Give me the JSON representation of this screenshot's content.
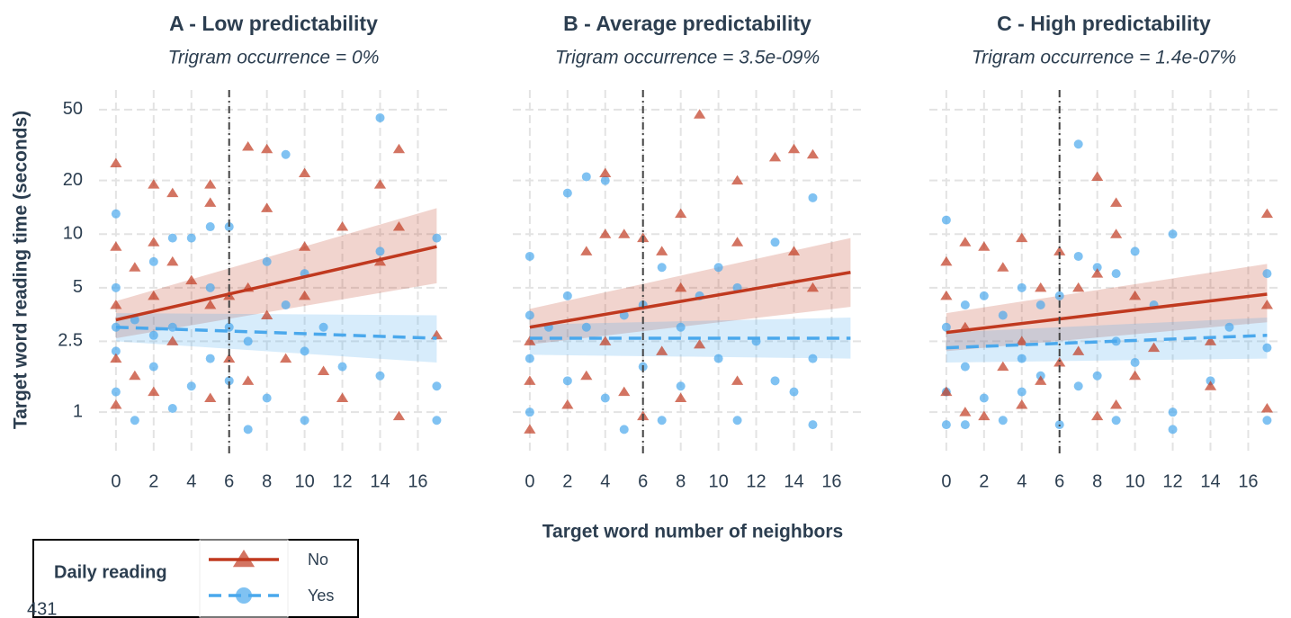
{
  "chart_data": [
    {
      "type": "scatter",
      "title": "A - Low predictability",
      "subtitle": "Trigram occurrence = 0%",
      "xlim": [
        -0.9,
        17.6
      ],
      "xticks": [
        0,
        2,
        4,
        6,
        8,
        10,
        12,
        14,
        16
      ],
      "ylim": [
        0.58,
        64.5
      ],
      "yticks": [
        1,
        2.5,
        5,
        10,
        20,
        50
      ],
      "log_y": true,
      "grid": true,
      "vline": 6,
      "series": [
        {
          "name": "No",
          "color": "#c0391f",
          "marker": "triangle",
          "line_style": "solid",
          "x": [
            0,
            0,
            0,
            0,
            0,
            1,
            1,
            2,
            2,
            2,
            2,
            3,
            3,
            3,
            4,
            5,
            5,
            5,
            5,
            6,
            6,
            7,
            7,
            7,
            8,
            8,
            8,
            9,
            10,
            10,
            10,
            11,
            12,
            12,
            14,
            14,
            15,
            15,
            15,
            17
          ],
          "values": [
            25,
            8.5,
            4,
            1.1,
            2,
            6.5,
            1.6,
            19,
            9,
            4.5,
            1.3,
            17,
            2.5,
            7,
            5.5,
            19,
            15,
            1.2,
            4,
            4.5,
            2,
            31,
            5,
            1.5,
            30,
            14,
            3.5,
            2,
            22,
            8.5,
            4.5,
            1.7,
            11,
            1.2,
            19,
            7,
            30,
            11,
            0.95,
            2.7
          ],
          "fit": {
            "x": [
              0,
              17
            ],
            "values": [
              3.3,
              8.5
            ],
            "lower": [
              2.6,
              5.3
            ],
            "upper": [
              4.2,
              14
            ]
          }
        },
        {
          "name": "Yes",
          "color": "#4aa8ec",
          "marker": "circle",
          "line_style": "dashed",
          "x": [
            0,
            0,
            0,
            0,
            0,
            1,
            1,
            2,
            2,
            2,
            3,
            3,
            3,
            4,
            4,
            5,
            5,
            5,
            6,
            6,
            6,
            7,
            7,
            8,
            8,
            9,
            9,
            10,
            10,
            10,
            11,
            12,
            14,
            14,
            14,
            17,
            17,
            17
          ],
          "values": [
            13,
            5,
            3,
            1.3,
            2.2,
            0.9,
            3.3,
            7,
            2.7,
            1.8,
            9.5,
            3,
            1.05,
            9.5,
            1.4,
            11,
            5,
            2,
            11,
            3,
            1.5,
            2.5,
            0.8,
            7,
            1.2,
            28,
            4,
            6,
            2.2,
            0.9,
            3,
            1.8,
            45,
            8,
            1.6,
            9.5,
            1.4,
            0.9
          ],
          "fit": {
            "x": [
              0,
              17
            ],
            "values": [
              3.0,
              2.6
            ],
            "lower": [
              2.5,
              1.9
            ],
            "upper": [
              3.6,
              3.5
            ]
          }
        }
      ]
    },
    {
      "type": "scatter",
      "title": "B - Average predictability",
      "subtitle": "Trigram occurrence = 3.5e-09%",
      "xlim": [
        -0.9,
        17.6
      ],
      "xticks": [
        0,
        2,
        4,
        6,
        8,
        10,
        12,
        14,
        16
      ],
      "ylim": [
        0.58,
        64.5
      ],
      "yticks": [
        1,
        2.5,
        5,
        10,
        20,
        50
      ],
      "log_y": true,
      "grid": true,
      "vline": 6,
      "series": [
        {
          "name": "No",
          "color": "#c0391f",
          "marker": "triangle",
          "line_style": "solid",
          "x": [
            0,
            0,
            0,
            2,
            3,
            3,
            4,
            4,
            4,
            5,
            5,
            6,
            6,
            7,
            7,
            8,
            8,
            8,
            9,
            9,
            11,
            11,
            11,
            13,
            14,
            14,
            15,
            15
          ],
          "values": [
            2.5,
            1.5,
            0.8,
            1.1,
            8,
            1.6,
            22,
            10,
            2.5,
            10,
            1.3,
            9.5,
            0.95,
            8,
            2.2,
            13,
            5,
            1.2,
            47,
            2.4,
            20,
            9,
            1.5,
            27,
            30,
            8,
            28,
            5
          ],
          "fit": {
            "x": [
              0,
              17
            ],
            "values": [
              3.0,
              6.1
            ],
            "lower": [
              2.4,
              3.9
            ],
            "upper": [
              3.8,
              9.5
            ]
          }
        },
        {
          "name": "Yes",
          "color": "#4aa8ec",
          "marker": "circle",
          "line_style": "dashed",
          "x": [
            0,
            0,
            0,
            0,
            1,
            2,
            2,
            2,
            3,
            3,
            4,
            4,
            5,
            5,
            6,
            6,
            7,
            7,
            8,
            8,
            9,
            10,
            10,
            11,
            11,
            12,
            13,
            13,
            14,
            15,
            15,
            15
          ],
          "values": [
            7.5,
            3.5,
            2,
            1,
            3,
            17,
            4.5,
            1.5,
            21,
            3,
            20,
            1.2,
            3.5,
            0.8,
            4,
            1.8,
            6.5,
            0.9,
            3,
            1.4,
            4.5,
            6.5,
            2,
            5,
            0.9,
            2.5,
            9,
            1.5,
            1.3,
            16,
            2,
            0.85
          ],
          "fit": {
            "x": [
              0,
              17
            ],
            "values": [
              2.6,
              2.6
            ],
            "lower": [
              2.1,
              2.0
            ],
            "upper": [
              3.1,
              3.4
            ]
          }
        }
      ]
    },
    {
      "type": "scatter",
      "title": "C - High predictability",
      "subtitle": "Trigram occurrence = 1.4e-07%",
      "xlim": [
        -0.9,
        17.6
      ],
      "xticks": [
        0,
        2,
        4,
        6,
        8,
        10,
        12,
        14,
        16
      ],
      "ylim": [
        0.58,
        64.5
      ],
      "yticks": [
        1,
        2.5,
        5,
        10,
        20,
        50
      ],
      "log_y": true,
      "grid": true,
      "vline": 6,
      "series": [
        {
          "name": "No",
          "color": "#c0391f",
          "marker": "triangle",
          "line_style": "solid",
          "x": [
            0,
            0,
            0,
            1,
            1,
            1,
            2,
            2,
            3,
            3,
            4,
            4,
            4,
            5,
            5,
            6,
            6,
            7,
            7,
            8,
            8,
            8,
            9,
            9,
            9,
            10,
            10,
            11,
            14,
            14,
            17,
            17,
            17
          ],
          "values": [
            4.5,
            7,
            1.3,
            9,
            3,
            1,
            8.5,
            0.95,
            6.5,
            1.8,
            9.5,
            2.5,
            1.1,
            5,
            1.5,
            8,
            1.9,
            5,
            2.2,
            21,
            6,
            0.95,
            15,
            10,
            1.1,
            4.5,
            1.6,
            2.3,
            1.4,
            2.5,
            13,
            4,
            1.05
          ],
          "fit": {
            "x": [
              0,
              17
            ],
            "values": [
              2.8,
              4.6
            ],
            "lower": [
              2.2,
              3.2
            ],
            "upper": [
              3.6,
              6.8
            ]
          }
        },
        {
          "name": "Yes",
          "color": "#4aa8ec",
          "marker": "circle",
          "line_style": "dashed",
          "x": [
            0,
            0,
            0,
            0,
            1,
            1,
            1,
            2,
            2,
            3,
            3,
            4,
            4,
            4,
            5,
            5,
            6,
            6,
            7,
            7,
            7,
            8,
            8,
            9,
            9,
            9,
            10,
            10,
            11,
            12,
            12,
            12,
            14,
            15,
            17,
            17,
            17
          ],
          "values": [
            12,
            3,
            1.3,
            0.85,
            4,
            1.8,
            0.85,
            4.5,
            1.2,
            3.5,
            0.9,
            5,
            2,
            1.3,
            4,
            1.6,
            4.5,
            0.85,
            32,
            7.5,
            1.4,
            6.5,
            1.6,
            6,
            2.5,
            0.9,
            8,
            1.9,
            4,
            10,
            1,
            0.8,
            1.5,
            3,
            6,
            2.3,
            0.9
          ],
          "fit": {
            "x": [
              0,
              17
            ],
            "values": [
              2.3,
              2.7
            ],
            "lower": [
              1.9,
              2.0
            ],
            "upper": [
              2.8,
              3.4
            ]
          }
        }
      ]
    }
  ],
  "x_label": "Target word number of neighbors",
  "y_label": "Target word reading time (seconds)",
  "legend_title": "Daily reading",
  "page_number": "431"
}
